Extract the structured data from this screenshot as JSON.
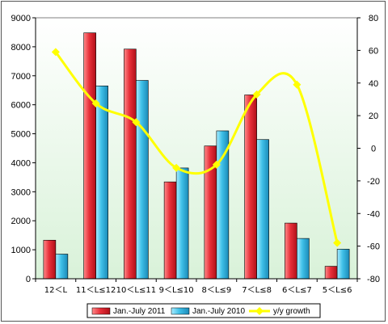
{
  "colors": {
    "series_2011": "#e8303a",
    "series_2010": "#3fc0e8",
    "growth": "#ffff00",
    "plot_bg_top": "#ffffff",
    "plot_bg_bottom": "#d9f2d9"
  },
  "chart_data": {
    "type": "bar",
    "categories": [
      "12＜L",
      "11＜L≤12",
      "10＜L≤11",
      "9＜L≤10",
      "8＜L≤9",
      "7＜L≤8",
      "6＜L≤7",
      "5＜L≤6"
    ],
    "series": [
      {
        "name": "Jan.-July 2011",
        "type": "bar",
        "axis": "left",
        "values": [
          1330,
          8480,
          7920,
          3340,
          4580,
          6340,
          1920,
          430
        ]
      },
      {
        "name": "Jan.-July 2010",
        "type": "bar",
        "axis": "left",
        "values": [
          850,
          6650,
          6840,
          3820,
          5100,
          4800,
          1390,
          1020
        ]
      },
      {
        "name": "y/y growth",
        "type": "line",
        "axis": "right",
        "marker": "diamond",
        "values": [
          59,
          27.5,
          16,
          -12,
          -10,
          33,
          39,
          -58
        ]
      }
    ],
    "ylim": [
      0,
      9000
    ],
    "y2lim": [
      -80,
      80
    ],
    "yticks": [
      "0",
      "1000",
      "2000",
      "3000",
      "4000",
      "5000",
      "6000",
      "7000",
      "8000",
      "9000"
    ],
    "y2ticks": [
      "-80",
      "-60",
      "-40",
      "-20",
      "0",
      "20",
      "40",
      "60",
      "80"
    ],
    "grid": false,
    "legend": "bottom",
    "title": "",
    "xlabel": "",
    "ylabel": ""
  }
}
